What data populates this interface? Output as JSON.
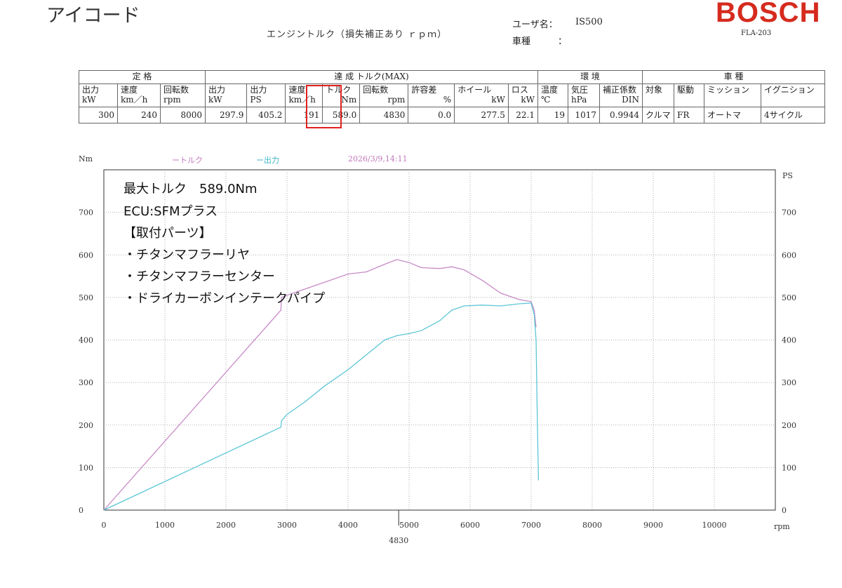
{
  "header": {
    "app_title": "アイコード",
    "doc_title": "エンジントルク（損失補正あり ｒｐｍ）",
    "user_label": "ユーザ名：",
    "user_value": "IS500",
    "car_label": "車種",
    "car_value": "：",
    "brand": "BOSCH",
    "model": "FLA-203"
  },
  "spec_table": {
    "groups": [
      "定 格",
      "達 成 トルク(MAX)",
      "環 境",
      "車 種"
    ],
    "headers": [
      [
        "出力",
        "kW"
      ],
      [
        "速度",
        "km／h"
      ],
      [
        "回転数",
        "rpm"
      ],
      [
        "出力",
        "kW"
      ],
      [
        "出力",
        "PS"
      ],
      [
        "速度",
        "km／h"
      ],
      [
        "トルク",
        "Nm"
      ],
      [
        "回転数",
        "rpm"
      ],
      [
        "許容差",
        "%"
      ],
      [
        "ホイール",
        "kW"
      ],
      [
        "ロス",
        "kW"
      ],
      [
        "温度",
        "℃"
      ],
      [
        "気圧",
        "hPa"
      ],
      [
        "補正係数",
        "DIN"
      ],
      [
        "対象",
        ""
      ],
      [
        "駆動",
        ""
      ],
      [
        "ミッション",
        ""
      ],
      [
        "イグニション",
        ""
      ]
    ],
    "values": [
      "300",
      "240",
      "8000",
      "297.9",
      "405.2",
      "191",
      "589.0",
      "4830",
      "0.0",
      "277.5",
      "22.1",
      "19",
      "1017",
      "0.9944",
      "クルマ",
      "FR",
      "オートマ",
      "4サイクル"
    ]
  },
  "notes": {
    "line1": "最大トルク　589.0Nm",
    "line2": "ECU:SFMプラス",
    "line3": "【取付パーツ】",
    "line4": "・チタンマフラーリヤ",
    "line5": "・チタンマフラーセンター",
    "line6": "・ドライカーボンインテークパイプ"
  },
  "colors": {
    "torque": "#c78ac6",
    "power": "#5cc6d6",
    "grid": "#999999",
    "highlight": "#e02020",
    "brand": "#d52b1e",
    "date": "#c278bd"
  },
  "chart_data": {
    "type": "line",
    "legend": [
      "ートルク",
      "ー出力"
    ],
    "timestamp": "2026/3/9,14:11",
    "ylabel_left": "Nm",
    "ylabel_right": "PS",
    "xlabel": "rpm",
    "xlim": [
      0,
      11000
    ],
    "ylim": [
      0,
      800
    ],
    "x_ticks": [
      "0",
      "1000",
      "2000",
      "3000",
      "4000",
      "5000",
      "6000",
      "7000",
      "8000",
      "9000",
      "10000"
    ],
    "y_ticks_left": [
      "0",
      "100",
      "200",
      "300",
      "400",
      "500",
      "600",
      "700"
    ],
    "y_ticks_right": [
      "0",
      "100",
      "200",
      "300",
      "400",
      "500",
      "600",
      "700"
    ],
    "max_marker": {
      "x": 4830,
      "label": "4830"
    },
    "series": [
      {
        "name": "トルク",
        "x": [
          0,
          2900,
          2910,
          3000,
          3300,
          3600,
          4000,
          4300,
          4600,
          4800,
          5000,
          5200,
          5500,
          5700,
          5900,
          6200,
          6500,
          6800,
          7000,
          7050,
          7080
        ],
        "y": [
          0,
          470,
          500,
          505,
          520,
          535,
          555,
          560,
          578,
          589,
          582,
          570,
          568,
          572,
          565,
          540,
          510,
          495,
          490,
          470,
          430
        ]
      },
      {
        "name": "出力",
        "x": [
          0,
          2900,
          2910,
          3000,
          3300,
          3600,
          4000,
          4300,
          4600,
          4800,
          5000,
          5200,
          5500,
          5700,
          5900,
          6200,
          6500,
          6800,
          7000,
          7050,
          7080,
          7100,
          7120
        ],
        "y": [
          0,
          195,
          210,
          225,
          255,
          290,
          330,
          365,
          400,
          410,
          415,
          422,
          445,
          470,
          480,
          482,
          480,
          485,
          487,
          460,
          400,
          220,
          70
        ]
      }
    ]
  }
}
